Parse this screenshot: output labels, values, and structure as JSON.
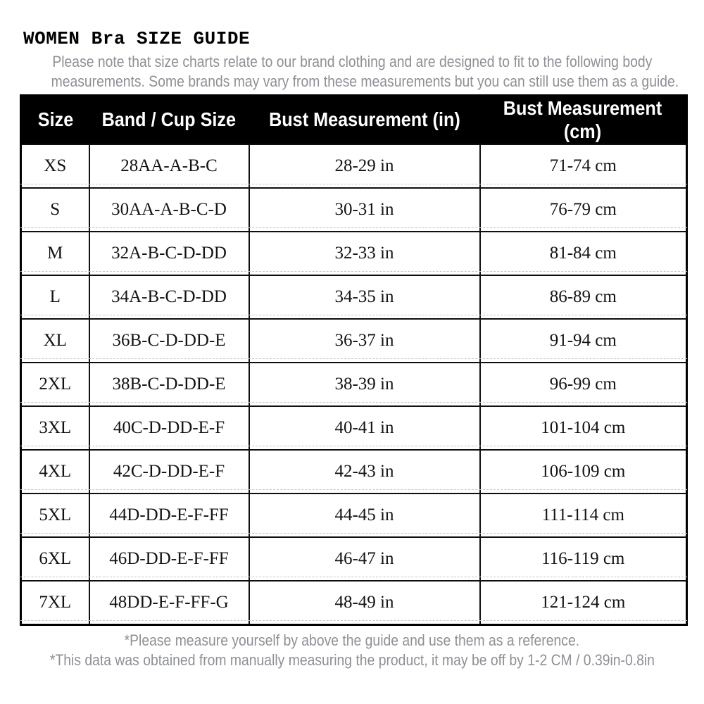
{
  "page": {
    "title": "WOMEN Bra SIZE GUIDE",
    "subtitle_lines": [
      "Please note that size charts relate to our brand clothing and are designed to fit to the following body",
      "measurements. Some brands may vary from these measurements but you can still use them as a guide."
    ],
    "footnotes": [
      "*Please measure yourself by above the guide and use them as a reference.",
      "*This data was obtained from manually measuring the product, it may be off by 1-2 CM / 0.39in-0.8in"
    ]
  },
  "table": {
    "headers": [
      "Size",
      "Band / Cup Size",
      "Bust Measurement (in)",
      "Bust Measurement (cm)"
    ],
    "rows": [
      [
        "XS",
        "28AA-A-B-C",
        "28-29 in",
        "71-74 cm"
      ],
      [
        "S",
        "30AA-A-B-C-D",
        "30-31 in",
        "76-79 cm"
      ],
      [
        "M",
        "32A-B-C-D-DD",
        "32-33 in",
        "81-84 cm"
      ],
      [
        "L",
        "34A-B-C-D-DD",
        "34-35 in",
        "86-89 cm"
      ],
      [
        "XL",
        "36B-C-D-DD-E",
        "36-37 in",
        "91-94 cm"
      ],
      [
        "2XL",
        "38B-C-D-DD-E",
        "38-39 in",
        "96-99 cm"
      ],
      [
        "3XL",
        "40C-D-DD-E-F",
        "40-41 in",
        "101-104 cm"
      ],
      [
        "4XL",
        "42C-D-DD-E-F",
        "42-43 in",
        "106-109 cm"
      ],
      [
        "5XL",
        "44D-DD-E-F-FF",
        "44-45 in",
        "111-114 cm"
      ],
      [
        "6XL",
        "46D-DD-E-F-FF",
        "46-47 in",
        "116-119 cm"
      ],
      [
        "7XL",
        "48DD-E-F-FF-G",
        "48-49 in",
        "121-124 cm"
      ]
    ]
  },
  "colors": {
    "header_bg": "#000000",
    "header_text": "#ffffff",
    "body_text": "#131313",
    "muted_text": "#8d9095",
    "table_border": "#000000",
    "grid_dashed": "#c6c6c6"
  }
}
